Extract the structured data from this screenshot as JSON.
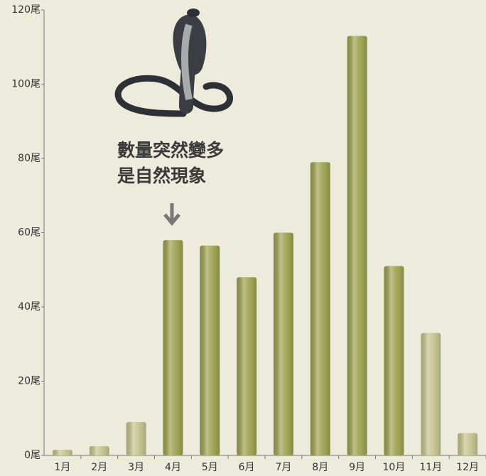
{
  "chart_data": {
    "type": "bar",
    "categories": [
      "1月",
      "2月",
      "3月",
      "4月",
      "5月",
      "6月",
      "7月",
      "8月",
      "9月",
      "10月",
      "11月",
      "12月"
    ],
    "values": [
      1.5,
      2.5,
      9,
      58,
      56.5,
      48,
      60,
      79,
      113,
      51,
      33,
      6
    ],
    "colors": [
      "#c4c38c",
      "#c4c38c",
      "#c4c38c",
      "#9da04c",
      "#9da04c",
      "#9da04c",
      "#9da04c",
      "#9da04c",
      "#9da04c",
      "#9da04c",
      "#c4c38c",
      "#c4c38c"
    ],
    "ylim": [
      0,
      120
    ],
    "yticks": [
      {
        "value": 0,
        "label": "0尾"
      },
      {
        "value": 20,
        "label": "20尾"
      },
      {
        "value": 40,
        "label": "40尾"
      },
      {
        "value": 60,
        "label": "60尾"
      },
      {
        "value": 80,
        "label": "80尾"
      },
      {
        "value": 100,
        "label": "100尾"
      },
      {
        "value": 120,
        "label": "120尾"
      }
    ],
    "annotation": [
      "數量突然變多",
      "是自然現象"
    ]
  }
}
